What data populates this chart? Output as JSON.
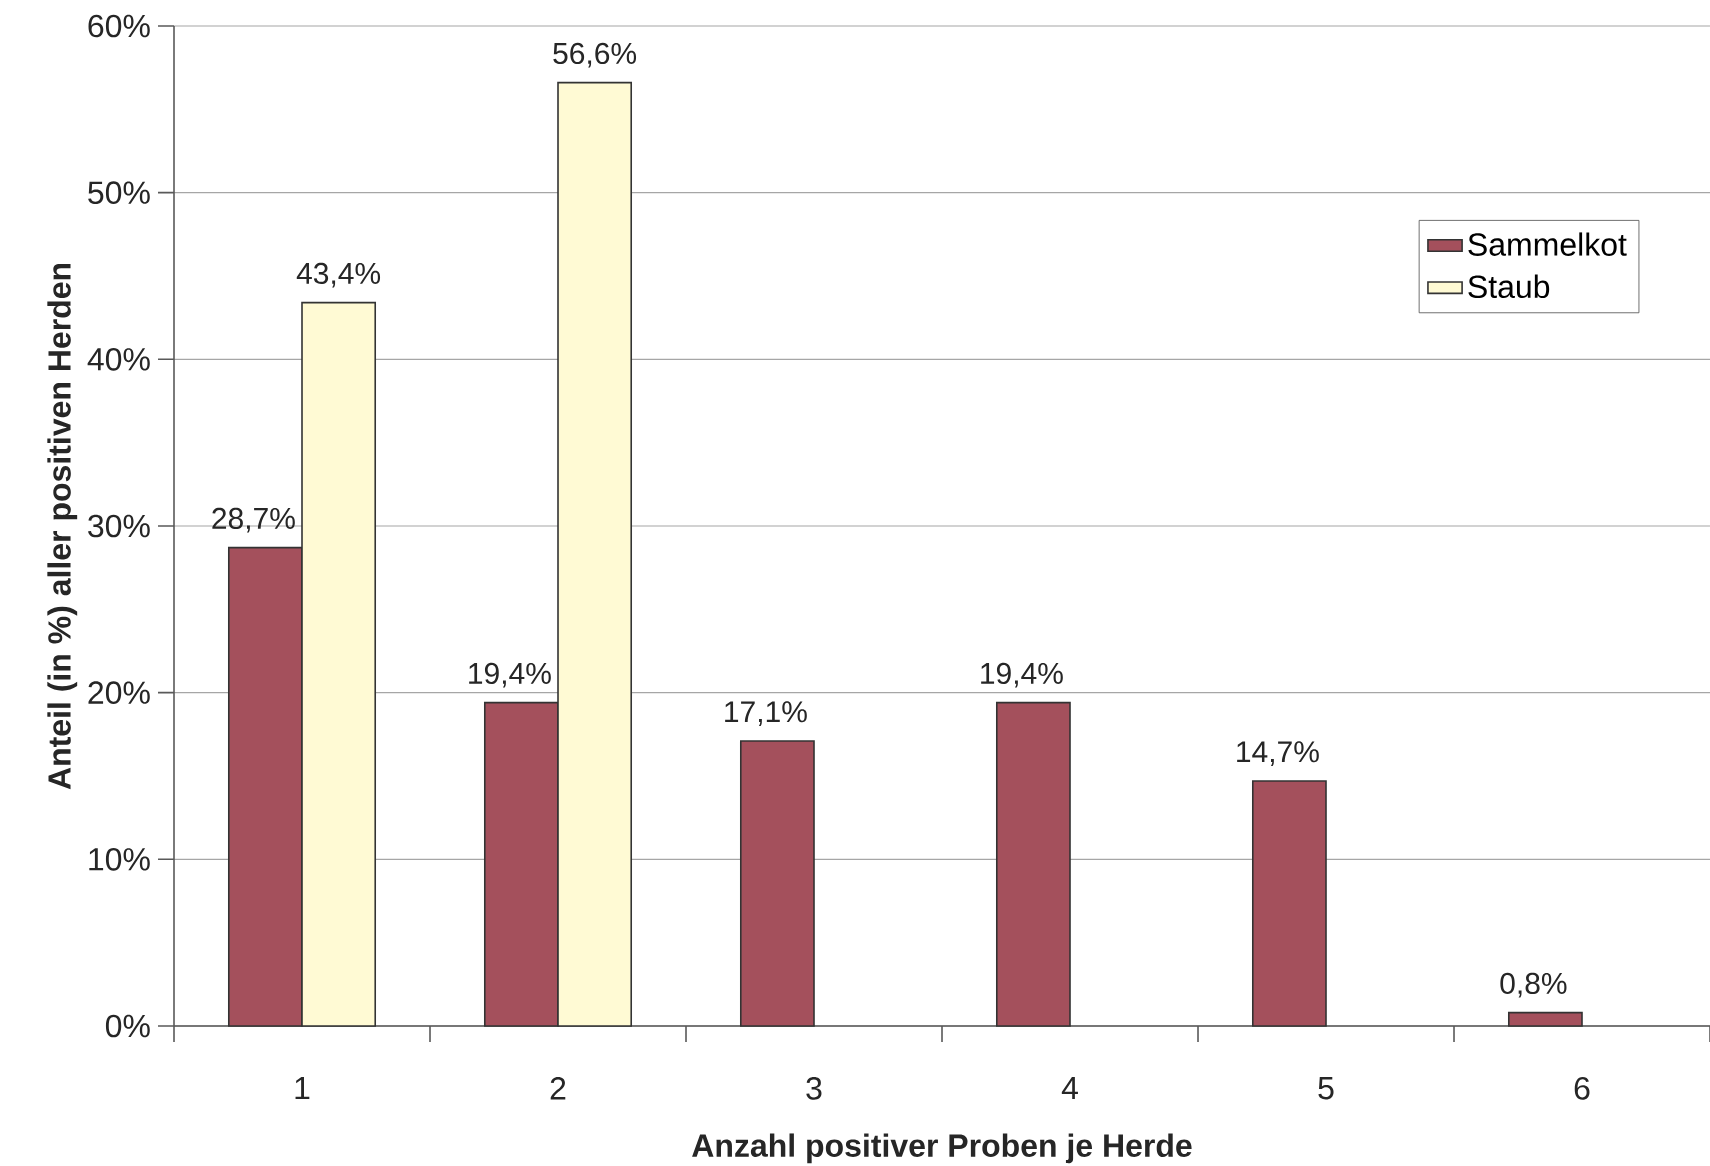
{
  "chart_data": {
    "type": "bar",
    "xlabel": "Anzahl positiver Proben je Herde",
    "ylabel": "Anteil (in %) aller positiven Herden",
    "categories": [
      "1",
      "2",
      "3",
      "4",
      "5",
      "6"
    ],
    "series": [
      {
        "name": "Sammelkot",
        "color": "#a4505c",
        "values": [
          28.7,
          19.4,
          17.1,
          19.4,
          14.7,
          0.8
        ],
        "value_labels": [
          "28,7%",
          "19,4%",
          "17,1%",
          "19,4%",
          "14,7%",
          "0,8%"
        ]
      },
      {
        "name": "Staub",
        "color": "#fffad4",
        "values": [
          43.4,
          56.6,
          null,
          null,
          null,
          null
        ],
        "value_labels": [
          "43,4%",
          "56,6%",
          null,
          null,
          null,
          null
        ]
      }
    ],
    "ylim": [
      0,
      60
    ],
    "yticks": [
      {
        "value": 0,
        "label": "0%"
      },
      {
        "value": 10,
        "label": "10%"
      },
      {
        "value": 20,
        "label": "20%"
      },
      {
        "value": 30,
        "label": "30%"
      },
      {
        "value": 40,
        "label": "40%"
      },
      {
        "value": 50,
        "label": "50%"
      },
      {
        "value": 60,
        "label": "60%"
      }
    ],
    "grid": "y",
    "legend": "top right"
  }
}
